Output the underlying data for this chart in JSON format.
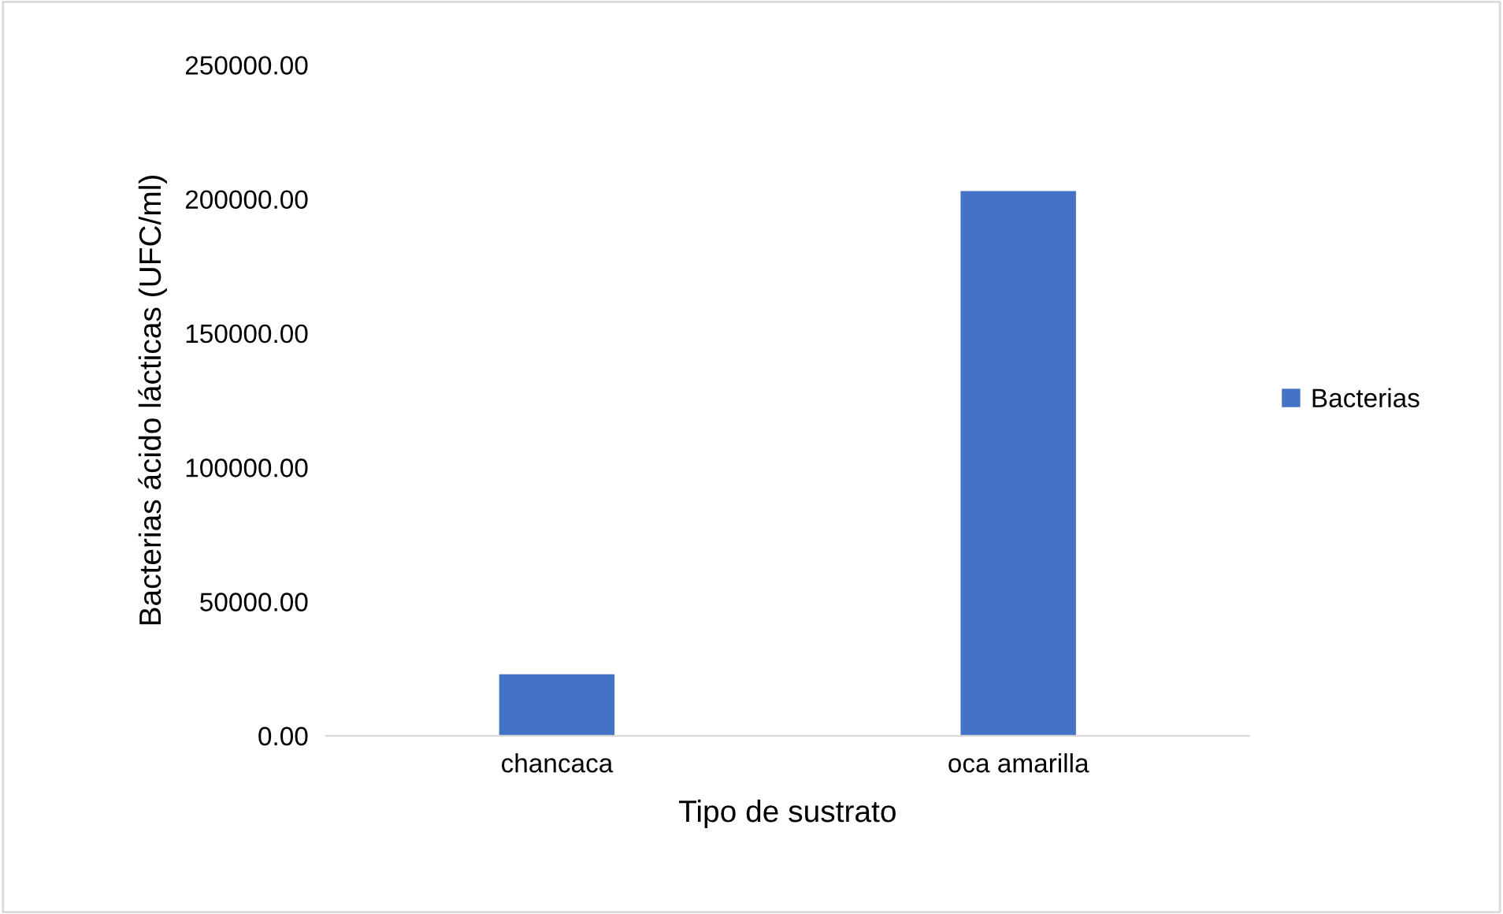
{
  "chart_data": {
    "type": "bar",
    "xlabel": "Tipo de sustrato",
    "ylabel": "Bacterias ácido lácticas (UFC/ml)",
    "categories": [
      "chancaca",
      "oca amarilla"
    ],
    "series": [
      {
        "name": "Bacterias",
        "color": "#4472c4",
        "values": [
          22900,
          203000
        ]
      }
    ],
    "ylim": [
      0,
      250000
    ],
    "yticks": [
      {
        "value": 0,
        "label": "0.00"
      },
      {
        "value": 50000,
        "label": "50000.00"
      },
      {
        "value": 100000,
        "label": "100000.00"
      },
      {
        "value": 150000,
        "label": "150000.00"
      },
      {
        "value": 200000,
        "label": "200000.00"
      },
      {
        "value": 250000,
        "label": "250000.00"
      }
    ],
    "grid": false,
    "legend": "right"
  }
}
